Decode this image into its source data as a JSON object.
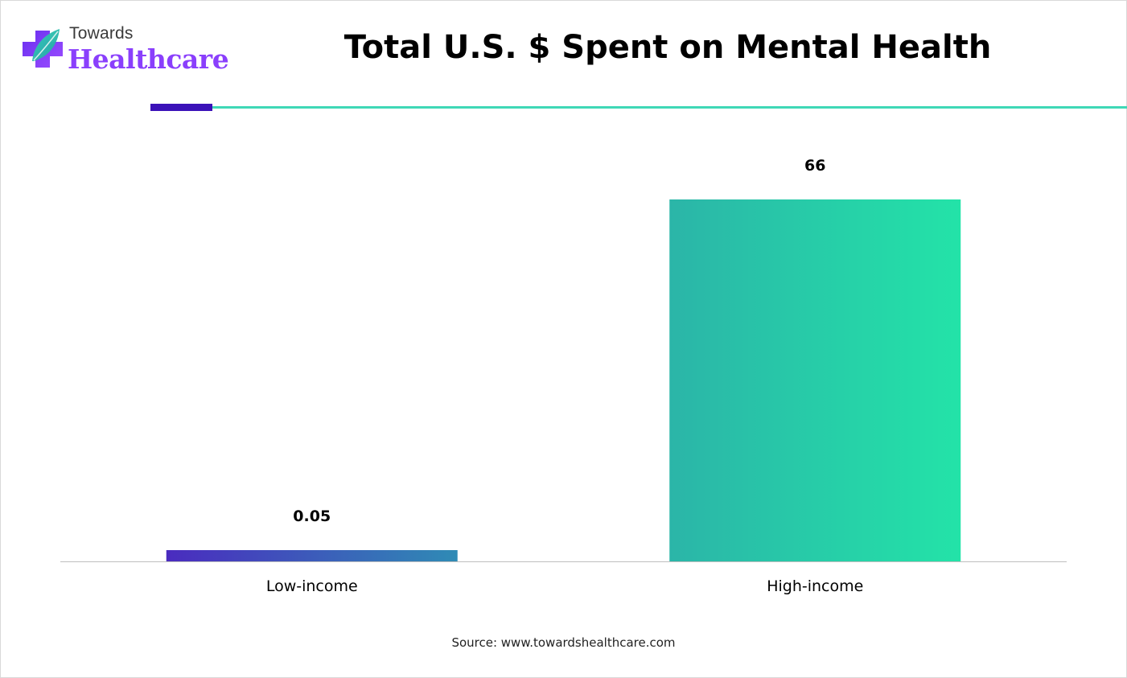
{
  "logo": {
    "top_word": "Towards",
    "bottom_word": "Healthcare",
    "icon": "medical-cross-leaf-icon",
    "colors": {
      "cross": "#8a3ffc",
      "leaf": "#2ec4b6",
      "text": "#8a3ffc"
    }
  },
  "title": "Total U.S. $ Spent on Mental Health",
  "source": "Source: www.towardshealthcare.com",
  "colors": {
    "accent_teal": "#3fd8b6",
    "accent_purple": "#3b12b8",
    "bar_low_start": "#4a2bbf",
    "bar_low_end": "#2f8bb5",
    "bar_high_start": "#2bb5a8",
    "bar_high_end": "#23e3a8"
  },
  "chart_data": {
    "type": "bar",
    "title": "Total U.S. $ Spent on Mental Health",
    "categories": [
      "Low-income",
      "High-income"
    ],
    "values": [
      0.05,
      66
    ],
    "value_labels": [
      "0.05",
      "66"
    ],
    "xlabel": "",
    "ylabel": "",
    "ylim": [
      0,
      80
    ],
    "grid": false,
    "legend": "none"
  }
}
